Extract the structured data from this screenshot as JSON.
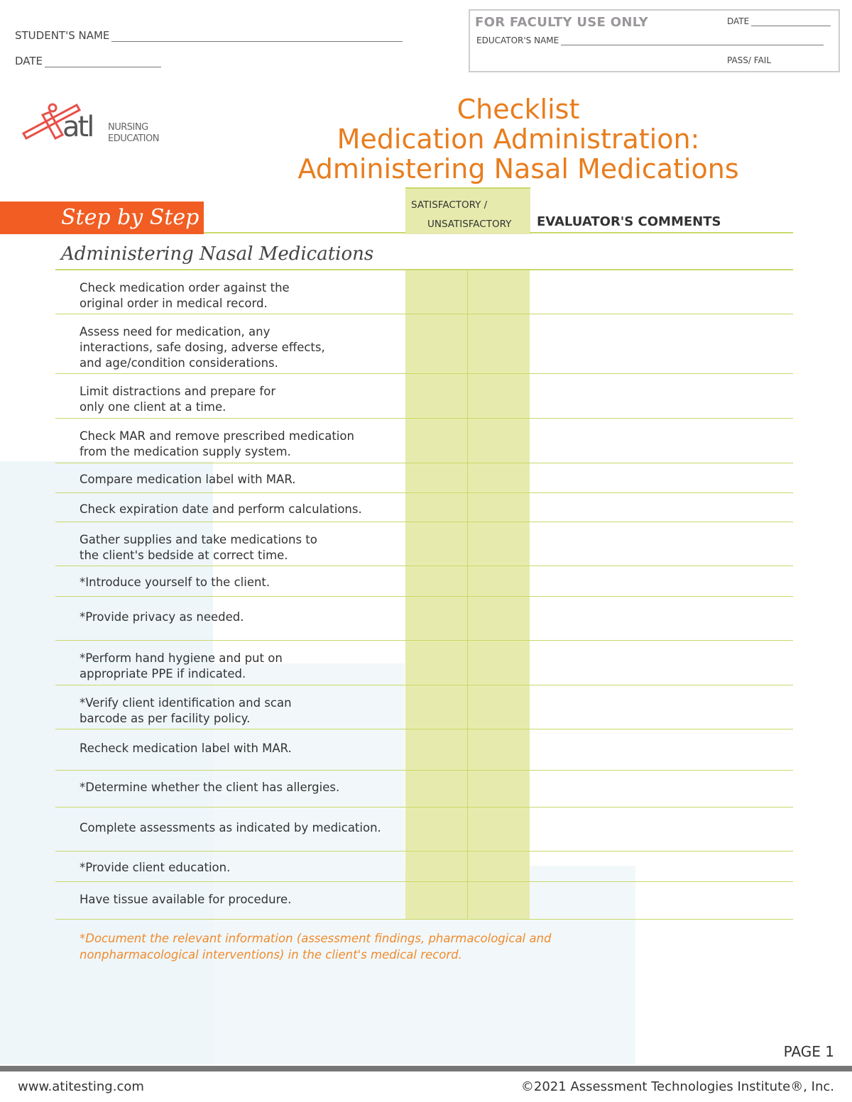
{
  "header": {
    "student_name_label": "STUDENT'S NAME",
    "date_label": "DATE",
    "faculty_box": {
      "title": "FOR FACULTY USE ONLY",
      "date_label": "DATE",
      "educator_label": "EDUCATOR'S NAME",
      "pass_fail_label": "PASS/ FAIL"
    }
  },
  "logo": {
    "mark": "atl",
    "line1": "NURSING",
    "line2": "EDUCATION"
  },
  "title": {
    "line1": "Checklist",
    "line2": "Medication Administration:",
    "line3": "Administering Nasal Medications"
  },
  "table_header": {
    "step_by_step": "Step by Step",
    "satisfactory": "SATISFACTORY /",
    "unsatisfactory": "UNSATISFACTORY",
    "comments": "EVALUATOR'S COMMENTS"
  },
  "section_title": "Administering Nasal Medications",
  "steps": [
    "Check medication order against the\noriginal order in medical record.",
    "Assess need for medication, any\ninteractions, safe dosing, adverse effects,\nand age/condition considerations.",
    "Limit distractions and prepare for\nonly one client at a time.",
    "Check MAR and remove prescribed medication\nfrom the medication supply system.",
    "Compare medication label with MAR.",
    "Check expiration date and perform calculations.",
    "Gather supplies and take medications to\nthe client's bedside at correct time.",
    "*Introduce yourself to the client.",
    "*Provide privacy as needed.",
    "*Perform hand hygiene and put on\nappropriate PPE if indicated.",
    "*Verify client identification and scan\nbarcode as per facility policy.",
    "Recheck medication label with MAR.",
    "*Determine whether the client has allergies.",
    "Complete assessments as indicated by medication.",
    "*Provide client education.",
    "Have tissue available for procedure."
  ],
  "footnote": "*Document the relevant information (assessment findings, pharmacological and\nnonpharmacological interventions) in the client's medical record.",
  "page_label": "PAGE 1",
  "footer": {
    "url": "www.atitesting.com",
    "copyright": "©2021 Assessment Technologies Institute®, Inc."
  },
  "colors": {
    "accent_orange": "#f15d22",
    "title_orange": "#e87d1e",
    "green": "#c9d86a",
    "green_fill": "#e6ebad"
  }
}
